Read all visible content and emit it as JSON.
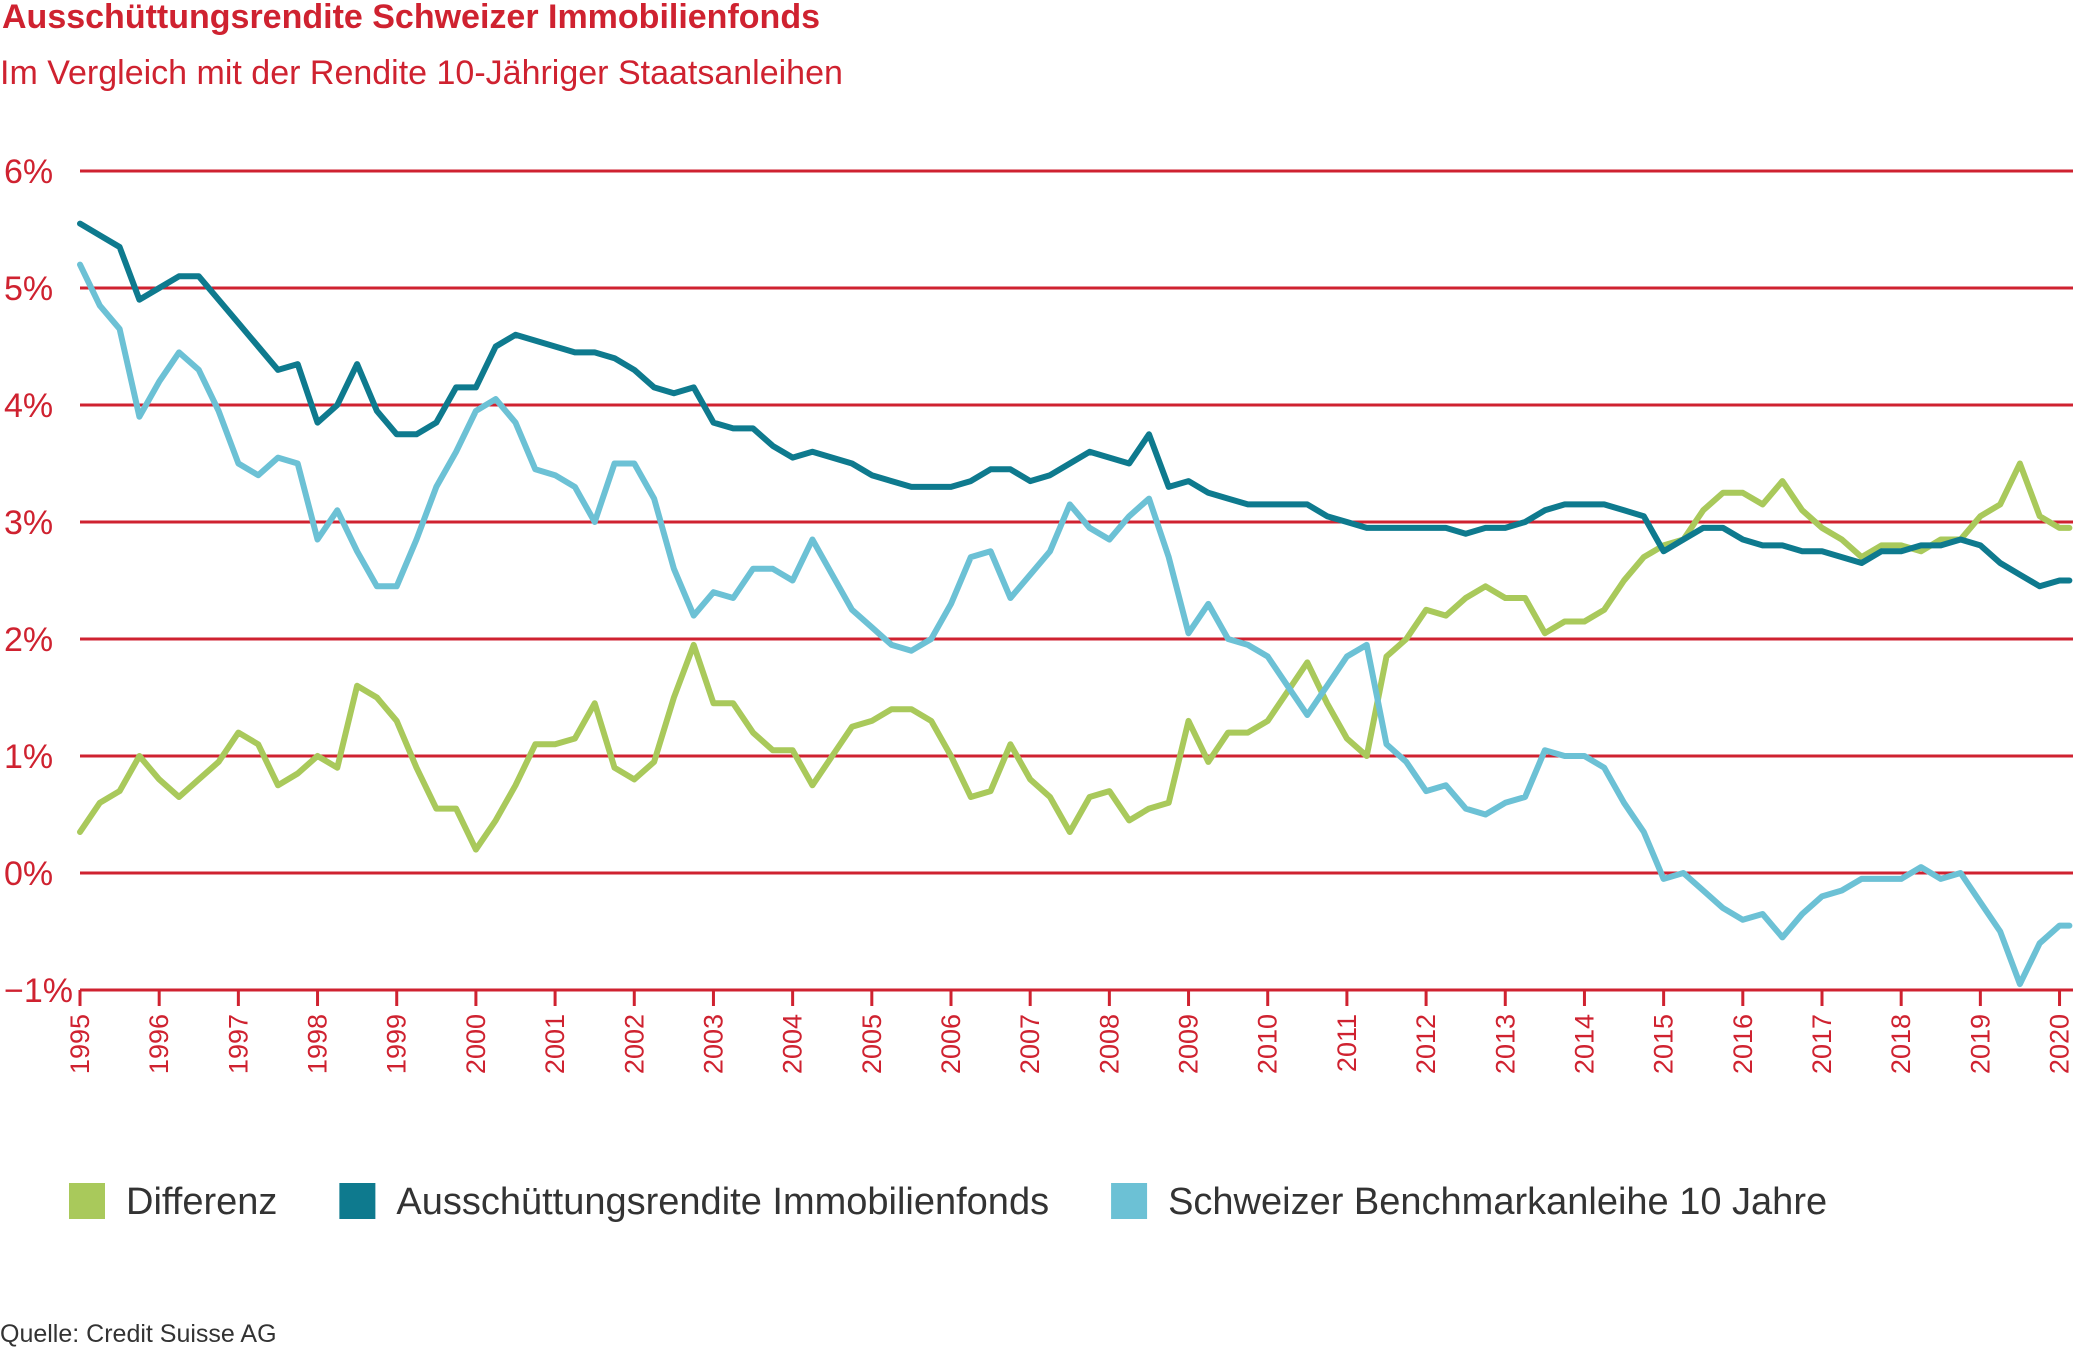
{
  "chart_data": {
    "type": "line",
    "title": "Ausschüttungsrendite Schweizer Immobilienfonds",
    "subtitle": "Im Vergleich mit der Rendite 10-Jähriger Staatsanleihen",
    "source": "Quelle: Credit Suisse AG",
    "x": [
      1995,
      1995.25,
      1995.5,
      1995.75,
      1996,
      1996.25,
      1996.5,
      1996.75,
      1997,
      1997.25,
      1997.5,
      1997.75,
      1998,
      1998.25,
      1998.5,
      1998.75,
      1999,
      1999.25,
      1999.5,
      1999.75,
      2000,
      2000.25,
      2000.5,
      2000.75,
      2001,
      2001.25,
      2001.5,
      2001.75,
      2002,
      2002.25,
      2002.5,
      2002.75,
      2003,
      2003.25,
      2003.5,
      2003.75,
      2004,
      2004.25,
      2004.5,
      2004.75,
      2005,
      2005.25,
      2005.5,
      2005.75,
      2006,
      2006.25,
      2006.5,
      2006.75,
      2007,
      2007.25,
      2007.5,
      2007.75,
      2008,
      2008.25,
      2008.5,
      2008.75,
      2009,
      2009.25,
      2009.5,
      2009.75,
      2010,
      2010.25,
      2010.5,
      2010.75,
      2011,
      2011.25,
      2011.5,
      2011.75,
      2012,
      2012.25,
      2012.5,
      2012.75,
      2013,
      2013.25,
      2013.5,
      2013.75,
      2014,
      2014.25,
      2014.5,
      2014.75,
      2015,
      2015.25,
      2015.5,
      2015.75,
      2016,
      2016.25,
      2016.5,
      2016.75,
      2017,
      2017.25,
      2017.5,
      2017.75,
      2018,
      2018.25,
      2018.5,
      2018.75,
      2019,
      2019.25,
      2019.5,
      2019.75,
      2020,
      2020.125
    ],
    "series": [
      {
        "name": "Differenz",
        "color": "#a9c95b",
        "values": [
          0.35,
          0.6,
          0.7,
          1.0,
          0.8,
          0.65,
          0.8,
          0.95,
          1.2,
          1.1,
          0.75,
          0.85,
          1.0,
          0.9,
          1.6,
          1.5,
          1.3,
          0.9,
          0.55,
          0.55,
          0.2,
          0.45,
          0.75,
          1.1,
          1.1,
          1.15,
          1.45,
          0.9,
          0.8,
          0.95,
          1.5,
          1.95,
          1.45,
          1.45,
          1.2,
          1.05,
          1.05,
          0.75,
          1.0,
          1.25,
          1.3,
          1.4,
          1.4,
          1.3,
          1.0,
          0.65,
          0.7,
          1.1,
          0.8,
          0.65,
          0.35,
          0.65,
          0.7,
          0.45,
          0.55,
          0.6,
          1.3,
          0.95,
          1.2,
          1.2,
          1.3,
          1.55,
          1.8,
          1.45,
          1.15,
          1.0,
          1.85,
          2.0,
          2.25,
          2.2,
          2.35,
          2.45,
          2.35,
          2.35,
          2.05,
          2.15,
          2.15,
          2.25,
          2.5,
          2.7,
          2.8,
          2.85,
          3.1,
          3.25,
          3.25,
          3.15,
          3.35,
          3.1,
          2.95,
          2.85,
          2.7,
          2.8,
          2.8,
          2.75,
          2.85,
          2.85,
          3.05,
          3.15,
          3.5,
          3.05,
          2.95,
          2.95
        ]
      },
      {
        "name": "Ausschüttungsrendite Immobilienfonds",
        "color": "#0e7a8e",
        "values": [
          5.55,
          5.45,
          5.35,
          4.9,
          5.0,
          5.1,
          5.1,
          4.9,
          4.7,
          4.5,
          4.3,
          4.35,
          3.85,
          4.0,
          4.35,
          3.95,
          3.75,
          3.75,
          3.85,
          4.15,
          4.15,
          4.5,
          4.6,
          4.55,
          4.5,
          4.45,
          4.45,
          4.4,
          4.3,
          4.15,
          4.1,
          4.15,
          3.85,
          3.8,
          3.8,
          3.65,
          3.55,
          3.6,
          3.55,
          3.5,
          3.4,
          3.35,
          3.3,
          3.3,
          3.3,
          3.35,
          3.45,
          3.45,
          3.35,
          3.4,
          3.5,
          3.6,
          3.55,
          3.5,
          3.75,
          3.3,
          3.35,
          3.25,
          3.2,
          3.15,
          3.15,
          3.15,
          3.15,
          3.05,
          3.0,
          2.95,
          2.95,
          2.95,
          2.95,
          2.95,
          2.9,
          2.95,
          2.95,
          3.0,
          3.1,
          3.15,
          3.15,
          3.15,
          3.1,
          3.05,
          2.75,
          2.85,
          2.95,
          2.95,
          2.85,
          2.8,
          2.8,
          2.75,
          2.75,
          2.7,
          2.65,
          2.75,
          2.75,
          2.8,
          2.8,
          2.85,
          2.8,
          2.65,
          2.55,
          2.45,
          2.5,
          2.5
        ]
      },
      {
        "name": "Schweizer Benchmarkanleihe 10 Jahre",
        "color": "#6cc1d5",
        "values": [
          5.2,
          4.85,
          4.65,
          3.9,
          4.2,
          4.45,
          4.3,
          3.95,
          3.5,
          3.4,
          3.55,
          3.5,
          2.85,
          3.1,
          2.75,
          2.45,
          2.45,
          2.85,
          3.3,
          3.6,
          3.95,
          4.05,
          3.85,
          3.45,
          3.4,
          3.3,
          3.0,
          3.5,
          3.5,
          3.2,
          2.6,
          2.2,
          2.4,
          2.35,
          2.6,
          2.6,
          2.5,
          2.85,
          2.55,
          2.25,
          2.1,
          1.95,
          1.9,
          2.0,
          2.3,
          2.7,
          2.75,
          2.35,
          2.55,
          2.75,
          3.15,
          2.95,
          2.85,
          3.05,
          3.2,
          2.7,
          2.05,
          2.3,
          2.0,
          1.95,
          1.85,
          1.6,
          1.35,
          1.6,
          1.85,
          1.95,
          1.1,
          0.95,
          0.7,
          0.75,
          0.55,
          0.5,
          0.6,
          0.65,
          1.05,
          1.0,
          1.0,
          0.9,
          0.6,
          0.35,
          -0.05,
          0.0,
          -0.15,
          -0.3,
          -0.4,
          -0.35,
          -0.55,
          -0.35,
          -0.2,
          -0.15,
          -0.05,
          -0.05,
          -0.05,
          0.05,
          -0.05,
          0.0,
          -0.25,
          -0.5,
          -0.95,
          -0.6,
          -0.45,
          -0.45
        ]
      }
    ],
    "xlim": [
      1995,
      2020.17
    ],
    "xticks": [
      1995,
      1996,
      1997,
      1998,
      1999,
      2000,
      2001,
      2002,
      2003,
      2004,
      2005,
      2006,
      2007,
      2008,
      2009,
      2010,
      2011,
      2012,
      2013,
      2014,
      2015,
      2016,
      2017,
      2018,
      2019,
      2020
    ],
    "ylim": [
      -1,
      6
    ],
    "yticks": [
      {
        "value": 6,
        "label": "6%"
      },
      {
        "value": 5,
        "label": "5%"
      },
      {
        "value": 4,
        "label": "4%"
      },
      {
        "value": 3,
        "label": "3%"
      },
      {
        "value": 2,
        "label": "2%"
      },
      {
        "value": 1,
        "label": "1%"
      },
      {
        "value": 0,
        "label": "0%"
      },
      {
        "value": -1,
        "label": "−1%"
      }
    ],
    "grid": true,
    "accent_color": "#cf2230",
    "legend": "bottom"
  }
}
